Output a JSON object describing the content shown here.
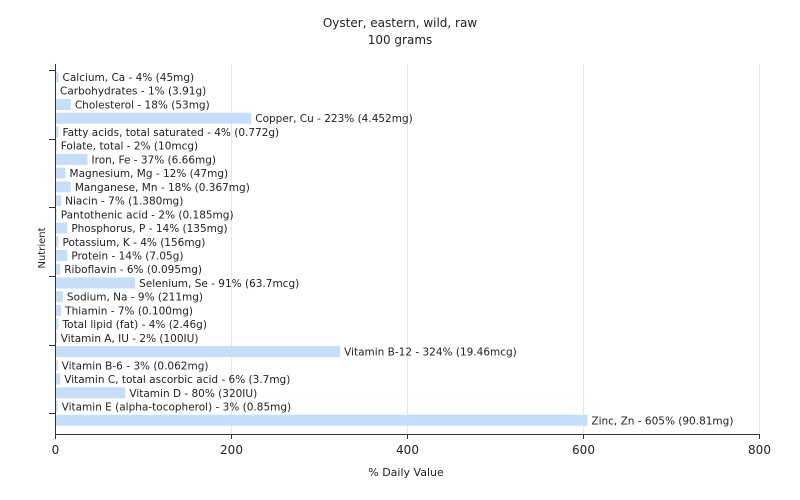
{
  "chart_data": {
    "type": "bar",
    "orientation": "horizontal",
    "title": "Oyster, eastern, wild, raw",
    "subtitle": "100 grams",
    "xlabel": "% Daily Value",
    "ylabel": "Nutrient",
    "xlim": [
      0,
      800
    ],
    "xticks": [
      "0",
      "200",
      "400",
      "600",
      "800"
    ],
    "grid": true,
    "bar_color": "#c6defa",
    "categories": [
      "Calcium, Ca",
      "Carbohydrates",
      "Cholesterol",
      "Copper, Cu",
      "Fatty acids, total saturated",
      "Folate, total",
      "Iron, Fe",
      "Magnesium, Mg",
      "Manganese, Mn",
      "Niacin",
      "Pantothenic acid",
      "Phosphorus, P",
      "Potassium, K",
      "Protein",
      "Riboflavin",
      "Selenium, Se",
      "Sodium, Na",
      "Thiamin",
      "Total lipid (fat)",
      "Vitamin A, IU",
      "Vitamin B-12",
      "Vitamin B-6",
      "Vitamin C, total ascorbic acid",
      "Vitamin D",
      "Vitamin E (alpha-tocopherol)",
      "Zinc, Zn"
    ],
    "values": [
      4,
      1,
      18,
      223,
      4,
      2,
      37,
      12,
      18,
      7,
      2,
      14,
      4,
      14,
      6,
      91,
      9,
      7,
      4,
      2,
      324,
      3,
      6,
      80,
      3,
      605
    ],
    "labels": [
      "Calcium, Ca - 4% (45mg)",
      "Carbohydrates - 1% (3.91g)",
      "Cholesterol - 18% (53mg)",
      "Copper, Cu - 223% (4.452mg)",
      "Fatty acids, total saturated - 4% (0.772g)",
      "Folate, total - 2% (10mcg)",
      "Iron, Fe - 37% (6.66mg)",
      "Magnesium, Mg - 12% (47mg)",
      "Manganese, Mn - 18% (0.367mg)",
      "Niacin - 7% (1.380mg)",
      "Pantothenic acid - 2% (0.185mg)",
      "Phosphorus, P - 14% (135mg)",
      "Potassium, K - 4% (156mg)",
      "Protein - 14% (7.05g)",
      "Riboflavin - 6% (0.095mg)",
      "Selenium, Se - 91% (63.7mcg)",
      "Sodium, Na - 9% (211mg)",
      "Thiamin - 7% (0.100mg)",
      "Total lipid (fat) - 4% (2.46g)",
      "Vitamin A, IU - 2% (100IU)",
      "Vitamin B-12 - 324% (19.46mcg)",
      "Vitamin B-6 - 3% (0.062mg)",
      "Vitamin C, total ascorbic acid - 6% (3.7mg)",
      "Vitamin D - 80% (320IU)",
      "Vitamin E (alpha-tocopherol) - 3% (0.85mg)",
      "Zinc, Zn - 605% (90.81mg)"
    ]
  }
}
